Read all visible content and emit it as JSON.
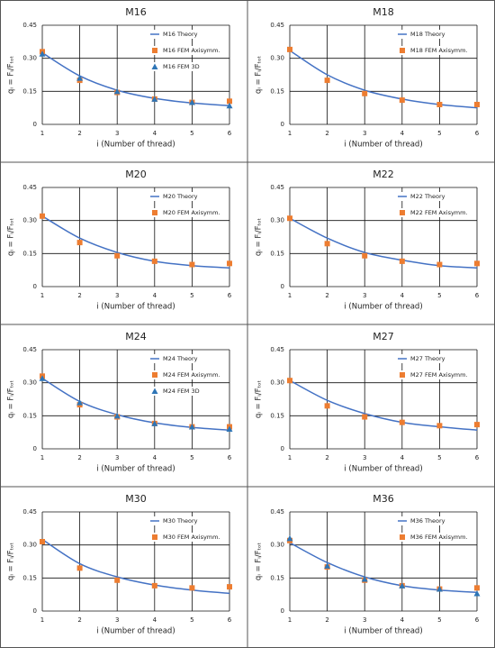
{
  "chart_data": [
    {
      "type": "line",
      "title": "M16",
      "x_label": "i (Number of thread)",
      "y_label": "qᵢ = Fᵢ/Fₜₒₜ",
      "x": [
        1,
        2,
        3,
        4,
        5,
        6
      ],
      "xlim": [
        1,
        6
      ],
      "xticks": [
        1,
        2,
        3,
        4,
        5,
        6
      ],
      "ylim": [
        0,
        0.45
      ],
      "yticks": [
        0,
        0.15,
        {
          "value": 0.3,
          "label": "0.30"
        },
        0.45
      ],
      "grid": true,
      "series": [
        {
          "name": "M16 Theory",
          "color": "#4472c4",
          "marker": "line",
          "values": [
            0.325,
            0.22,
            0.155,
            0.118,
            0.097,
            0.085
          ]
        },
        {
          "name": "M16 FEM Axisymm.",
          "color": "#ed7d31",
          "marker": "square",
          "values": [
            0.33,
            0.2,
            0.145,
            0.115,
            0.1,
            0.105
          ]
        },
        {
          "name": "M16 FEM 3D",
          "color": "#2e75b6",
          "marker": "triangle",
          "values": [
            0.32,
            0.21,
            0.15,
            0.115,
            0.1,
            0.085
          ]
        }
      ]
    },
    {
      "type": "line",
      "title": "M18",
      "x_label": "i (Number of thread)",
      "y_label": "qᵢ = Fᵢ/Fₜₒₜ",
      "x": [
        1,
        2,
        3,
        4,
        5,
        6
      ],
      "xlim": [
        1,
        6
      ],
      "xticks": [
        1,
        2,
        3,
        4,
        5,
        6
      ],
      "ylim": [
        0,
        0.45
      ],
      "yticks": [
        0,
        0.15,
        {
          "value": 0.3,
          "label": "0.30"
        },
        0.45
      ],
      "grid": true,
      "series": [
        {
          "name": "M18 Theory",
          "color": "#4472c4",
          "marker": "line",
          "values": [
            0.335,
            0.225,
            0.155,
            0.115,
            0.09,
            0.075
          ]
        },
        {
          "name": "M18 FEM Axisymm.",
          "color": "#ed7d31",
          "marker": "square",
          "values": [
            0.34,
            0.2,
            0.14,
            0.11,
            0.09,
            0.09
          ]
        }
      ]
    },
    {
      "type": "line",
      "title": "M20",
      "x_label": "i (Number of thread)",
      "y_label": "qᵢ = Fᵢ/Fₜₒₜ",
      "x": [
        1,
        2,
        3,
        4,
        5,
        6
      ],
      "xlim": [
        1,
        6
      ],
      "xticks": [
        1,
        2,
        3,
        4,
        5,
        6
      ],
      "ylim": [
        0,
        0.45
      ],
      "yticks": [
        0,
        0.15,
        {
          "value": 0.3,
          "label": "0.30"
        },
        0.45
      ],
      "grid": true,
      "series": [
        {
          "name": "M20 Theory",
          "color": "#4472c4",
          "marker": "line",
          "values": [
            0.32,
            0.22,
            0.155,
            0.115,
            0.095,
            0.085
          ]
        },
        {
          "name": "M20 FEM Axisymm.",
          "color": "#ed7d31",
          "marker": "square",
          "values": [
            0.32,
            0.2,
            0.14,
            0.115,
            0.1,
            0.105
          ]
        }
      ]
    },
    {
      "type": "line",
      "title": "M22",
      "x_label": "i (Number of thread)",
      "y_label": "qᵢ = Fᵢ/Fₜₒₜ",
      "x": [
        1,
        2,
        3,
        4,
        5,
        6
      ],
      "xlim": [
        1,
        6
      ],
      "xticks": [
        1,
        2,
        3,
        4,
        5,
        6
      ],
      "ylim": [
        0,
        0.45
      ],
      "yticks": [
        0,
        0.15,
        {
          "value": 0.3,
          "label": "0.30"
        },
        0.45
      ],
      "grid": true,
      "series": [
        {
          "name": "M22 Theory",
          "color": "#4472c4",
          "marker": "line",
          "values": [
            0.31,
            0.22,
            0.155,
            0.12,
            0.095,
            0.085
          ]
        },
        {
          "name": "M22 FEM Axisymm.",
          "color": "#ed7d31",
          "marker": "square",
          "values": [
            0.31,
            0.195,
            0.14,
            0.115,
            0.1,
            0.105
          ]
        }
      ]
    },
    {
      "type": "line",
      "title": "M24",
      "x_label": "i (Number of thread)",
      "y_label": "qᵢ = Fᵢ/Fₜₒₜ",
      "x": [
        1,
        2,
        3,
        4,
        5,
        6
      ],
      "xlim": [
        1,
        6
      ],
      "xticks": [
        1,
        2,
        3,
        4,
        5,
        6
      ],
      "ylim": [
        0,
        0.45
      ],
      "yticks": [
        0,
        0.15,
        {
          "value": 0.3,
          "label": "0.30"
        },
        0.45
      ],
      "grid": true,
      "series": [
        {
          "name": "M24 Theory",
          "color": "#4472c4",
          "marker": "line",
          "values": [
            0.32,
            0.215,
            0.155,
            0.118,
            0.097,
            0.085
          ]
        },
        {
          "name": "M24 FEM Axisymm.",
          "color": "#ed7d31",
          "marker": "square",
          "values": [
            0.33,
            0.2,
            0.145,
            0.115,
            0.1,
            0.1
          ]
        },
        {
          "name": "M24 FEM 3D",
          "color": "#2e75b6",
          "marker": "triangle",
          "values": [
            0.32,
            0.21,
            0.15,
            0.115,
            0.1,
            0.09
          ]
        }
      ]
    },
    {
      "type": "line",
      "title": "M27",
      "x_label": "i (Number of thread)",
      "y_label": "qᵢ = Fᵢ/Fₜₒₜ",
      "x": [
        1,
        2,
        3,
        4,
        5,
        6
      ],
      "xlim": [
        1,
        6
      ],
      "xticks": [
        1,
        2,
        3,
        4,
        5,
        6
      ],
      "ylim": [
        0,
        0.45
      ],
      "yticks": [
        0,
        0.15,
        {
          "value": 0.3,
          "label": "0.30"
        },
        0.45
      ],
      "grid": true,
      "series": [
        {
          "name": "M27 Theory",
          "color": "#4472c4",
          "marker": "line",
          "values": [
            0.31,
            0.22,
            0.16,
            0.12,
            0.1,
            0.085
          ]
        },
        {
          "name": "M27 FEM Axisymm.",
          "color": "#ed7d31",
          "marker": "square",
          "values": [
            0.31,
            0.195,
            0.145,
            0.12,
            0.105,
            0.11
          ]
        }
      ]
    },
    {
      "type": "line",
      "title": "M30",
      "x_label": "i (Number of thread)",
      "y_label": "qᵢ = Fᵢ/Fₜₒₜ",
      "x": [
        1,
        2,
        3,
        4,
        5,
        6
      ],
      "xlim": [
        1,
        6
      ],
      "xticks": [
        1,
        2,
        3,
        4,
        5,
        6
      ],
      "ylim": [
        0,
        0.45
      ],
      "yticks": [
        0,
        0.15,
        {
          "value": 0.3,
          "label": "0.30"
        },
        0.45
      ],
      "grid": true,
      "series": [
        {
          "name": "M30 Theory",
          "color": "#4472c4",
          "marker": "line",
          "values": [
            0.325,
            0.215,
            0.155,
            0.118,
            0.095,
            0.08
          ]
        },
        {
          "name": "M30 FEM Axisymm.",
          "color": "#ed7d31",
          "marker": "square",
          "values": [
            0.315,
            0.195,
            0.14,
            0.115,
            0.105,
            0.11
          ]
        }
      ]
    },
    {
      "type": "line",
      "title": "M36",
      "x_label": "i (Number of thread)",
      "y_label": "qᵢ = Fᵢ/Fₜₒₜ",
      "x": [
        1,
        2,
        3,
        4,
        5,
        6
      ],
      "xlim": [
        1,
        6
      ],
      "xticks": [
        1,
        2,
        3,
        4,
        5,
        6
      ],
      "ylim": [
        0,
        0.45
      ],
      "yticks": [
        0,
        0.15,
        {
          "value": 0.3,
          "label": "0.30"
        },
        0.45
      ],
      "grid": true,
      "series": [
        {
          "name": "M36 Theory",
          "color": "#4472c4",
          "marker": "line",
          "values": [
            0.31,
            0.22,
            0.155,
            0.115,
            0.095,
            0.085
          ]
        },
        {
          "name": "M36 FEM Axisymm.",
          "color": "#ed7d31",
          "marker": "square",
          "values": [
            0.32,
            0.2,
            0.14,
            0.115,
            0.1,
            0.105
          ]
        },
        {
          "color": "#2e75b6",
          "marker": "triangle",
          "values": [
            0.33,
            0.205,
            0.145,
            0.115,
            0.1,
            0.08
          ]
        }
      ]
    }
  ]
}
